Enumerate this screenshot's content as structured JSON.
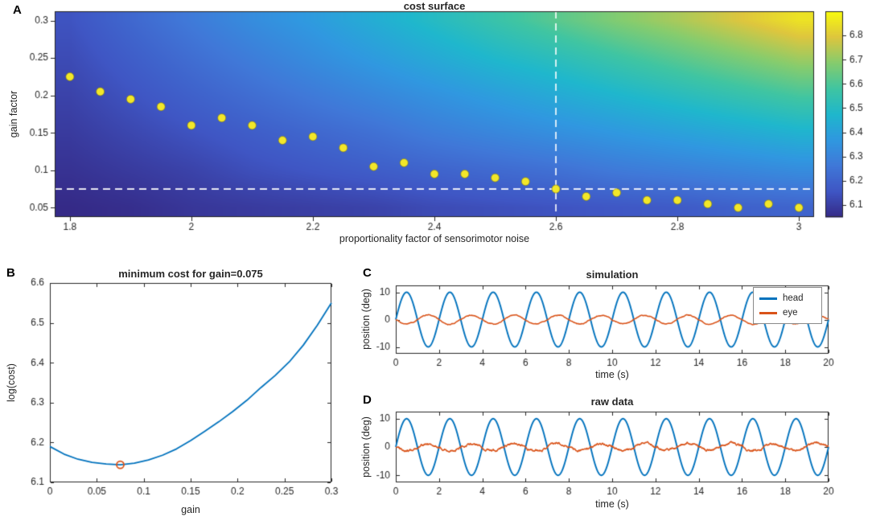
{
  "figure": {
    "background": "#ffffff",
    "axis_color": "#262626"
  },
  "chart_data": [
    {
      "panel": "A",
      "type": "heatmap",
      "title": "cost surface",
      "xlabel": "proportionality factor of sensorimotor noise",
      "ylabel": "gain factor",
      "xlim": [
        1.775,
        3.025
      ],
      "ylim": [
        0.0375,
        0.3125
      ],
      "xticks": [
        1.8,
        2,
        2.2,
        2.4,
        2.6,
        2.8,
        3
      ],
      "yticks": [
        0.05,
        0.1,
        0.15,
        0.2,
        0.25,
        0.3
      ],
      "colorbar": {
        "range": [
          6.05,
          6.9
        ],
        "ticks": [
          6.1,
          6.2,
          6.3,
          6.4,
          6.5,
          6.6,
          6.7,
          6.8
        ]
      },
      "surface": {
        "x": [
          1.8,
          1.9,
          2.0,
          2.1,
          2.2,
          2.3,
          2.4,
          2.5,
          2.6,
          2.7,
          2.8,
          2.9,
          3.0
        ],
        "y": [
          0.05,
          0.1,
          0.15,
          0.2,
          0.25,
          0.3
        ],
        "values": [
          [
            6.05,
            6.06,
            6.08,
            6.09,
            6.1,
            6.11,
            6.13,
            6.14,
            6.15,
            6.16,
            6.17,
            6.19,
            6.2
          ],
          [
            6.07,
            6.09,
            6.11,
            6.14,
            6.16,
            6.18,
            6.2,
            6.22,
            6.24,
            6.27,
            6.29,
            6.31,
            6.33
          ],
          [
            6.09,
            6.12,
            6.15,
            6.18,
            6.21,
            6.24,
            6.28,
            6.31,
            6.34,
            6.37,
            6.4,
            6.43,
            6.46
          ],
          [
            6.11,
            6.15,
            6.19,
            6.23,
            6.27,
            6.31,
            6.35,
            6.39,
            6.43,
            6.47,
            6.51,
            6.55,
            6.59
          ],
          [
            6.13,
            6.18,
            6.23,
            6.28,
            6.33,
            6.38,
            6.43,
            6.48,
            6.52,
            6.57,
            6.62,
            6.67,
            6.72
          ],
          [
            6.15,
            6.21,
            6.27,
            6.33,
            6.38,
            6.44,
            6.5,
            6.56,
            6.62,
            6.68,
            6.73,
            6.79,
            6.85
          ]
        ]
      },
      "min_points": {
        "color": "#f2e72a",
        "x": [
          1.8,
          1.85,
          1.9,
          1.95,
          2.0,
          2.05,
          2.1,
          2.15,
          2.2,
          2.25,
          2.3,
          2.35,
          2.4,
          2.45,
          2.5,
          2.55,
          2.6,
          2.65,
          2.7,
          2.75,
          2.8,
          2.85,
          2.9,
          2.95,
          3.0
        ],
        "y": [
          0.225,
          0.205,
          0.195,
          0.185,
          0.16,
          0.17,
          0.16,
          0.14,
          0.145,
          0.13,
          0.105,
          0.11,
          0.095,
          0.095,
          0.09,
          0.085,
          0.075,
          0.065,
          0.07,
          0.06,
          0.06,
          0.055,
          0.05,
          0.055,
          0.05
        ]
      },
      "crosshair": {
        "x": 2.6,
        "y": 0.075,
        "color": "#ffffff",
        "style": "dashed"
      }
    },
    {
      "panel": "B",
      "type": "line",
      "title": "minimum cost for gain=0.075",
      "xlabel": "gain",
      "ylabel": "log(cost)",
      "xlim": [
        0,
        0.3
      ],
      "ylim": [
        6.1,
        6.6
      ],
      "xticks": [
        0,
        0.05,
        0.1,
        0.15,
        0.2,
        0.25,
        0.3
      ],
      "yticks": [
        6.1,
        6.2,
        6.3,
        6.4,
        6.5,
        6.6
      ],
      "line_color": "#0072BD",
      "x": [
        0,
        0.015,
        0.03,
        0.045,
        0.06,
        0.075,
        0.09,
        0.105,
        0.12,
        0.135,
        0.15,
        0.165,
        0.18,
        0.195,
        0.21,
        0.225,
        0.24,
        0.255,
        0.27,
        0.285,
        0.3
      ],
      "y": [
        6.19,
        6.171,
        6.158,
        6.15,
        6.146,
        6.144,
        6.148,
        6.156,
        6.168,
        6.184,
        6.205,
        6.228,
        6.252,
        6.278,
        6.306,
        6.338,
        6.368,
        6.402,
        6.444,
        6.494,
        6.55
      ],
      "min_marker": {
        "x": 0.075,
        "y": 6.144,
        "color": "#D95319"
      }
    },
    {
      "panel": "C",
      "type": "line",
      "title": "simulation",
      "xlabel": "time (s)",
      "ylabel": "position (deg)",
      "xlim": [
        0,
        20
      ],
      "ylim": [
        -12.5,
        12.5
      ],
      "xticks": [
        0,
        2,
        4,
        6,
        8,
        10,
        12,
        14,
        16,
        18,
        20
      ],
      "yticks": [
        -10,
        0,
        10
      ],
      "series": [
        {
          "name": "head",
          "color": "#0072BD",
          "amplitude": 10,
          "period": 2,
          "phase": 0,
          "noise": 0
        },
        {
          "name": "eye",
          "color": "#D95319",
          "amplitude": 1.6,
          "period": 2,
          "phase": 3.14159,
          "noise": 0.18
        }
      ],
      "legend": {
        "position": "top-right",
        "entries": [
          "head",
          "eye"
        ]
      }
    },
    {
      "panel": "D",
      "type": "line",
      "title": "raw data",
      "xlabel": "time (s)",
      "ylabel": "position (deg)",
      "xlim": [
        0,
        20
      ],
      "ylim": [
        -12.5,
        12.5
      ],
      "xticks": [
        0,
        2,
        4,
        6,
        8,
        10,
        12,
        14,
        16,
        18,
        20
      ],
      "yticks": [
        -10,
        0,
        10
      ],
      "series": [
        {
          "name": "head",
          "color": "#0072BD",
          "amplitude": 10,
          "period": 2,
          "phase": 0,
          "noise": 0
        },
        {
          "name": "eye",
          "color": "#D95319",
          "amplitude": 1.2,
          "period": 2,
          "phase": 3.14159,
          "noise": 0.45
        }
      ]
    }
  ]
}
